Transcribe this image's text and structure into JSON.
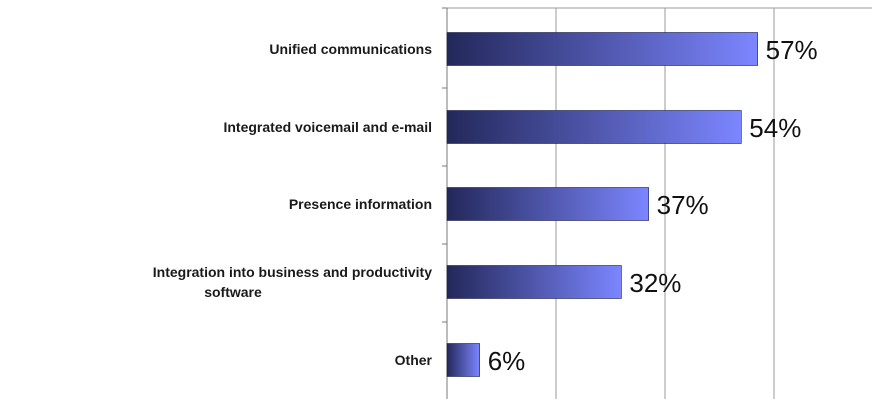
{
  "chart_data": {
    "type": "bar",
    "orientation": "horizontal",
    "title": "",
    "xlabel": "",
    "ylabel": "",
    "categories": [
      [
        "Unified communications"
      ],
      [
        "Integrated voicemail and e-mail"
      ],
      [
        "Presence information"
      ],
      [
        "Integration into business and productivity",
        "software"
      ],
      [
        "Other"
      ]
    ],
    "values": [
      57,
      54,
      37,
      32,
      6
    ],
    "value_labels": [
      "57%",
      "54%",
      "37%",
      "32%",
      "6%"
    ],
    "xlim": [
      0,
      70
    ],
    "grid": true,
    "legend": "none",
    "colors": {
      "bar_dark": "#23285a",
      "bar_light": "#7c86ff",
      "grid": "#9a9a9a",
      "axis": "#7a7a7a",
      "text": "#1a1a1a"
    }
  }
}
